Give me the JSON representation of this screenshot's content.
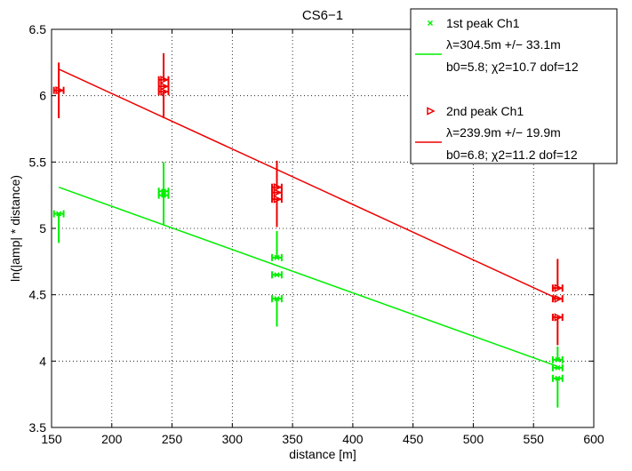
{
  "chart_data": {
    "type": "scatter",
    "title": "CS6−1",
    "xlabel": "distance [m]",
    "ylabel": "ln(|amp| * distance)",
    "xlim": [
      150,
      600
    ],
    "ylim": [
      3.5,
      6.5
    ],
    "xticks": [
      150,
      200,
      250,
      300,
      350,
      400,
      450,
      500,
      550,
      600
    ],
    "yticks": [
      3.5,
      4,
      4.5,
      5,
      5.5,
      6,
      6.5
    ],
    "xtick_labels": [
      "150",
      "200",
      "250",
      "300",
      "350",
      "400",
      "450",
      "500",
      "550",
      "600"
    ],
    "ytick_labels": [
      "3.5",
      "4",
      "4.5",
      "5",
      "5.5",
      "6",
      "6.5"
    ],
    "grid": true,
    "legend_position": "top-right",
    "series": [
      {
        "name": "1st peak Ch1",
        "marker": "x",
        "color": "#00ee00",
        "points": [
          {
            "x": 156,
            "y": 5.11,
            "xerr": 4,
            "yerr_low": 0.22,
            "yerr_high": 0.0
          },
          {
            "x": 243,
            "y": 5.25,
            "xerr": 4,
            "yerr_low": 0.22,
            "yerr_high": 0.25
          },
          {
            "x": 243,
            "y": 5.28,
            "xerr": 4,
            "yerr_low": 0,
            "yerr_high": 0
          },
          {
            "x": 337,
            "y": 4.78,
            "xerr": 4,
            "yerr_low": 0,
            "yerr_high": 0.2
          },
          {
            "x": 337,
            "y": 4.65,
            "xerr": 4,
            "yerr_low": 0,
            "yerr_high": 0
          },
          {
            "x": 337,
            "y": 4.47,
            "xerr": 4,
            "yerr_low": 0.21,
            "yerr_high": 0
          },
          {
            "x": 570,
            "y": 4.01,
            "xerr": 4,
            "yerr_low": 0,
            "yerr_high": 0.1
          },
          {
            "x": 570,
            "y": 3.95,
            "xerr": 4,
            "yerr_low": 0,
            "yerr_high": 0
          },
          {
            "x": 570,
            "y": 3.87,
            "xerr": 4,
            "yerr_low": 0.22,
            "yerr_high": 0
          }
        ],
        "fit": {
          "x": [
            156,
            570
          ],
          "y": [
            5.31,
            3.96
          ]
        },
        "legend_lines": [
          "λ=304.5m +/− 33.1m",
          "b0=5.8; χ2=10.7 dof=12"
        ]
      },
      {
        "name": "2nd peak Ch1",
        "marker": "triangle-right",
        "color": "#ee0000",
        "points": [
          {
            "x": 156,
            "y": 6.04,
            "xerr": 4,
            "yerr_low": 0.21,
            "yerr_high": 0.21
          },
          {
            "x": 243,
            "y": 6.12,
            "xerr": 4,
            "yerr_low": 0,
            "yerr_high": 0.2
          },
          {
            "x": 243,
            "y": 6.07,
            "xerr": 4,
            "yerr_low": 0,
            "yerr_high": 0
          },
          {
            "x": 243,
            "y": 6.03,
            "xerr": 4,
            "yerr_low": 0.2,
            "yerr_high": 0
          },
          {
            "x": 337,
            "y": 5.31,
            "xerr": 4,
            "yerr_low": 0,
            "yerr_high": 0.2
          },
          {
            "x": 337,
            "y": 5.27,
            "xerr": 4,
            "yerr_low": 0,
            "yerr_high": 0
          },
          {
            "x": 337,
            "y": 5.22,
            "xerr": 4,
            "yerr_low": 0.21,
            "yerr_high": 0
          },
          {
            "x": 570,
            "y": 4.55,
            "xerr": 4,
            "yerr_low": 0,
            "yerr_high": 0.22
          },
          {
            "x": 570,
            "y": 4.47,
            "xerr": 4,
            "yerr_low": 0,
            "yerr_high": 0
          },
          {
            "x": 570,
            "y": 4.33,
            "xerr": 4,
            "yerr_low": 0.21,
            "yerr_high": 0
          }
        ],
        "fit": {
          "x": [
            156,
            570
          ],
          "y": [
            6.2,
            4.47
          ]
        },
        "legend_lines": [
          "λ=239.9m +/− 19.9m",
          "b0=6.8; χ2=11.2 dof=12"
        ]
      }
    ]
  }
}
